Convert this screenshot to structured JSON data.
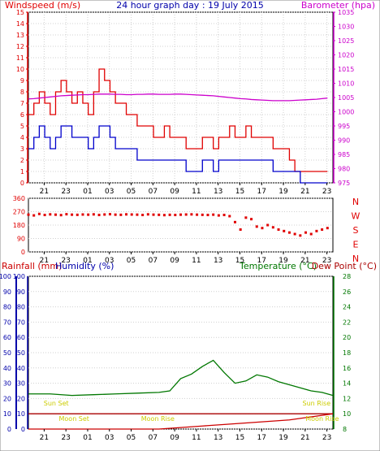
{
  "chart_data": [
    {
      "type": "line",
      "title": "24 hour graph day : 19 July 2015",
      "y_left_label": "Windspeed (m/s)",
      "y_right_label": "Barometer (hpa)",
      "ylim": [
        0,
        15
      ],
      "y2lim": [
        975,
        1035
      ],
      "x_ticks": [
        "21",
        "23",
        "01",
        "03",
        "05",
        "07",
        "09",
        "11",
        "13",
        "15",
        "17",
        "19",
        "21",
        "23"
      ],
      "x": [
        0,
        0.5,
        1,
        1.5,
        2,
        2.5,
        3,
        3.5,
        4,
        4.5,
        5,
        5.5,
        6,
        6.5,
        7,
        7.5,
        8,
        8.5,
        9,
        9.5,
        10,
        10.5,
        11,
        11.5,
        12,
        12.5,
        13,
        13.5,
        14,
        14.5,
        15,
        15.5,
        16,
        16.5,
        17,
        17.5,
        18,
        18.5,
        19,
        19.5,
        20,
        20.5,
        21,
        21.5,
        22,
        22.5,
        23,
        23.5,
        24,
        24.5,
        25,
        25.5,
        26,
        26.5,
        27,
        27.5
      ],
      "series": [
        {
          "name": "Gust",
          "color": "#e00000",
          "values": [
            6,
            7,
            8,
            7,
            6,
            8,
            9,
            8,
            7,
            8,
            7,
            6,
            8,
            10,
            9,
            8,
            7,
            7,
            6,
            6,
            5,
            5,
            5,
            4,
            4,
            5,
            4,
            4,
            4,
            3,
            3,
            3,
            4,
            4,
            3,
            4,
            4,
            5,
            4,
            4,
            5,
            4,
            4,
            4,
            4,
            3,
            3,
            3,
            2,
            1,
            1,
            1,
            1,
            1,
            1,
            1
          ]
        },
        {
          "name": "Average",
          "color": "#0000cc",
          "values": [
            3,
            4,
            5,
            4,
            3,
            4,
            5,
            5,
            4,
            4,
            4,
            3,
            4,
            5,
            5,
            4,
            3,
            3,
            3,
            3,
            2,
            2,
            2,
            2,
            2,
            2,
            2,
            2,
            2,
            1,
            1,
            1,
            2,
            2,
            1,
            2,
            2,
            2,
            2,
            2,
            2,
            2,
            2,
            2,
            2,
            1,
            1,
            1,
            1,
            1,
            0,
            0,
            0,
            0,
            0,
            0
          ]
        },
        {
          "name": "Barometer",
          "color": "#cc00cc",
          "axis": "right",
          "values": [
            1004.5,
            1004.6,
            1004.8,
            1005,
            1005.2,
            1005.4,
            1005.6,
            1005.7,
            1005.8,
            1005.9,
            1006,
            1006,
            1006.1,
            1006.2,
            1006.2,
            1006.2,
            1006.1,
            1006.1,
            1006,
            1006,
            1006.1,
            1006.1,
            1006.2,
            1006.2,
            1006.1,
            1006.1,
            1006.1,
            1006.2,
            1006.2,
            1006.1,
            1006,
            1005.9,
            1005.8,
            1005.7,
            1005.6,
            1005.4,
            1005.2,
            1005,
            1004.8,
            1004.6,
            1004.5,
            1004.3,
            1004.2,
            1004.1,
            1004,
            1003.9,
            1003.9,
            1003.9,
            1003.9,
            1004,
            1004.1,
            1004.2,
            1004.3,
            1004.4,
            1004.6,
            1004.8
          ]
        }
      ]
    },
    {
      "type": "scatter",
      "y_left_ticks": [
        "360",
        "270",
        "180",
        "90",
        "0"
      ],
      "y_right_labels": [
        "N",
        "W",
        "S",
        "E",
        "N"
      ],
      "ylim": [
        0,
        360
      ],
      "x_ticks": [
        "21",
        "23",
        "01",
        "03",
        "05",
        "07",
        "09",
        "11",
        "13",
        "15",
        "17",
        "19",
        "21",
        "23"
      ],
      "series": [
        {
          "name": "Wind direction",
          "color": "#e00000",
          "x": [
            0,
            0.5,
            1,
            1.5,
            2,
            2.5,
            3,
            3.5,
            4,
            4.5,
            5,
            5.5,
            6,
            6.5,
            7,
            7.5,
            8,
            8.5,
            9,
            9.5,
            10,
            10.5,
            11,
            11.5,
            12,
            12.5,
            13,
            13.5,
            14,
            14.5,
            15,
            15.5,
            16,
            16.5,
            17,
            17.5,
            18,
            18.5,
            19,
            19.5,
            20,
            20.5,
            21,
            21.5,
            22,
            22.5,
            23,
            23.5,
            24,
            24.5,
            25,
            25.5,
            26,
            26.5,
            27,
            27.5
          ],
          "values": [
            250,
            245,
            255,
            248,
            252,
            250,
            247,
            253,
            250,
            249,
            251,
            250,
            252,
            248,
            251,
            253,
            250,
            249,
            252,
            251,
            250,
            248,
            252,
            250,
            249,
            247,
            249,
            248,
            250,
            251,
            252,
            250,
            249,
            248,
            250,
            245,
            248,
            240,
            200,
            150,
            230,
            220,
            170,
            160,
            180,
            165,
            150,
            140,
            130,
            120,
            110,
            130,
            120,
            140,
            150,
            160
          ]
        }
      ]
    },
    {
      "type": "line",
      "y_left_label": "Rainfall (mm)",
      "y_left2_label": "Humidity (%)",
      "y_right_label": "Temperature (°C)",
      "y_right2_label": "Dew Point (°C)",
      "ylim": [
        0,
        100
      ],
      "y2lim": [
        8,
        28
      ],
      "x_ticks": [
        "21",
        "23",
        "01",
        "03",
        "05",
        "07",
        "09",
        "11",
        "13",
        "15",
        "17",
        "19",
        "21",
        "23"
      ],
      "annotations": [
        {
          "text": "Sun Set",
          "x": 0.05
        },
        {
          "text": "Moon Set",
          "x": 0.1
        },
        {
          "text": "Moon Rise",
          "x": 0.37
        },
        {
          "text": "Sun Rise",
          "x": 0.9
        },
        {
          "text": "Moon Rise",
          "x": 0.91
        }
      ],
      "series": [
        {
          "name": "Temperature",
          "color": "#007700",
          "axis": "right",
          "x": [
            0,
            2,
            4,
            6,
            8,
            10,
            12,
            13,
            14,
            15,
            16,
            17,
            18,
            19,
            20,
            21,
            22,
            23,
            24,
            25,
            26,
            27,
            28
          ],
          "values": [
            12.6,
            12.6,
            12.4,
            12.5,
            12.6,
            12.7,
            12.8,
            13.0,
            14.6,
            15.2,
            16.2,
            17.0,
            15.4,
            14.0,
            14.3,
            15.1,
            14.8,
            14.2,
            13.8,
            13.4,
            13.0,
            12.8,
            12.4
          ]
        },
        {
          "name": "Dew Point",
          "color": "#aa0000",
          "axis": "right",
          "x": [
            0,
            2,
            4,
            6,
            8,
            10,
            12,
            14,
            16,
            18,
            20,
            22,
            24,
            26,
            28
          ],
          "values": [
            10,
            10,
            10,
            10,
            10,
            10,
            10,
            10,
            10,
            10,
            10,
            10,
            10,
            10,
            10
          ]
        },
        {
          "name": "Rainfall",
          "color": "#cc0000",
          "axis": "left",
          "x": [
            0,
            8,
            12,
            14,
            16,
            18,
            20,
            22,
            24,
            26,
            28
          ],
          "values": [
            0,
            0,
            0,
            1,
            2,
            3,
            4,
            5,
            6,
            8,
            10
          ]
        }
      ]
    }
  ]
}
